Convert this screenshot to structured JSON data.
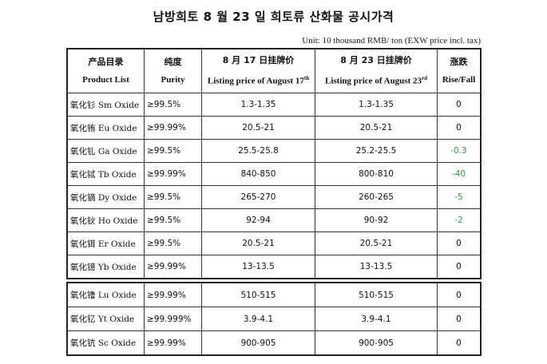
{
  "title": "남방희토 8 월 23 일 희토류 산화물 공시가격",
  "unit_note": "Unit: 10 thousand RMB/ ton (EXW price incl. tax)",
  "headers": {
    "product_zh": "产品目录",
    "product_en": "Product List",
    "purity_zh": "纯度",
    "purity_en": "Purity",
    "price1_zh": "8 月 17 日挂牌价",
    "price1_en": "Listing price of August 17",
    "price1_sup": "th",
    "price2_zh": "8 月 23 日挂牌价",
    "price2_en": "Listing price of August 23",
    "price2_sup": "rd",
    "change_zh": "涨跌",
    "change_en": "Rise/Fall"
  },
  "rows": [
    {
      "name": "氧化钐 Sm Oxide",
      "purity": "≥99.5%",
      "price_aug17": "1.3-1.35",
      "price_aug23": "1.3-1.35",
      "change": "0",
      "negative": false
    },
    {
      "name": "氧化铕 Eu Oxide",
      "purity": "≥99.99%",
      "price_aug17": "20.5-21",
      "price_aug23": "20.5-21",
      "change": "0",
      "negative": false
    },
    {
      "name": "氧化钆 Ga Oxide",
      "purity": "≥99.5%",
      "price_aug17": "25.5-25.8",
      "price_aug23": "25.2-25.5",
      "change": "-0.3",
      "negative": true
    },
    {
      "name": "氧化铽 Tb Oxide",
      "purity": "≥99.99%",
      "price_aug17": "840-850",
      "price_aug23": "800-810",
      "change": "-40",
      "negative": true
    },
    {
      "name": "氧化镝 Dy Oxide",
      "purity": "≥99.5%",
      "price_aug17": "265-270",
      "price_aug23": "260-265",
      "change": "-5",
      "negative": true
    },
    {
      "name": "氧化钬 Ho Oxide",
      "purity": "≥99.5%",
      "price_aug17": "92-94",
      "price_aug23": "90-92",
      "change": "-2",
      "negative": true
    },
    {
      "name": "氧化铒 Er Oxide",
      "purity": "≥99.5%",
      "price_aug17": "20.5-21",
      "price_aug23": "20.5-21",
      "change": "0",
      "negative": false
    },
    {
      "name": "氧化镱 Yb Oxide",
      "purity": "≥99.99%",
      "price_aug17": "13-13.5",
      "price_aug23": "13-13.5",
      "change": "0",
      "negative": false
    }
  ],
  "rows2": [
    {
      "name": "氧化镥 Lu Oxide",
      "purity": "≥99.99%",
      "price_aug17": "510-515",
      "price_aug23": "510-515",
      "change": "0",
      "negative": false
    },
    {
      "name": "氧化钇 Yt Oxide",
      "purity": "≥99.999%",
      "price_aug17": "3.9-4.1",
      "price_aug23": "3.9-4.1",
      "change": "0",
      "negative": false
    },
    {
      "name": "氧化钪 Sc Oxide",
      "purity": "≥99.99%",
      "price_aug17": "900-905",
      "price_aug23": "900-905",
      "change": "0",
      "negative": false
    }
  ],
  "colors": {
    "negative_change": "#2e9a4e",
    "border": "#333333"
  }
}
